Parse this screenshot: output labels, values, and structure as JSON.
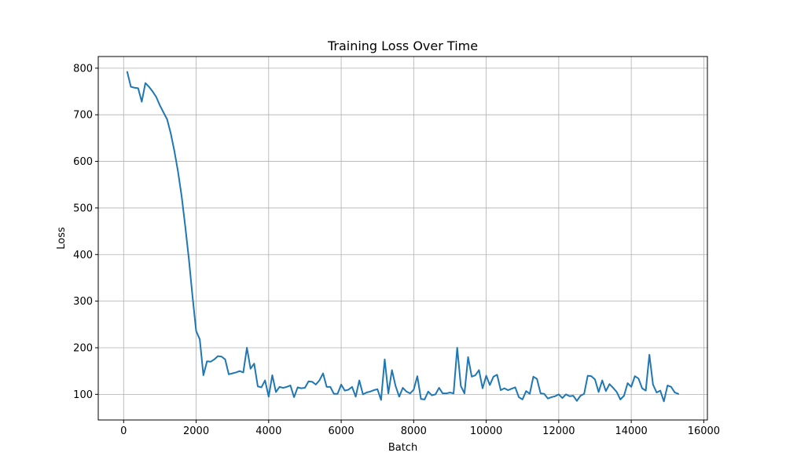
{
  "chart_data": {
    "type": "line",
    "title": "Training Loss Over Time",
    "xlabel": "Batch",
    "ylabel": "Loss",
    "xlim": [
      -700,
      16100
    ],
    "ylim": [
      45,
      825
    ],
    "xticks": [
      0,
      2000,
      4000,
      6000,
      8000,
      10000,
      12000,
      14000,
      16000
    ],
    "xtick_labels": [
      "0",
      "2000",
      "4000",
      "6000",
      "8000",
      "10000",
      "12000",
      "14000",
      "16000"
    ],
    "yticks": [
      100,
      200,
      300,
      400,
      500,
      600,
      700,
      800
    ],
    "ytick_labels": [
      "100",
      "200",
      "300",
      "400",
      "500",
      "600",
      "700",
      "800"
    ],
    "grid": true,
    "legend": "none",
    "series": [
      {
        "color": "#1f77b4",
        "x": [
          100,
          200,
          300,
          400,
          500,
          600,
          700,
          800,
          900,
          1000,
          1100,
          1200,
          1300,
          1400,
          1500,
          1600,
          1700,
          1800,
          1900,
          2000,
          2100,
          2200,
          2300,
          2400,
          2500,
          2600,
          2700,
          2800,
          2900,
          3000,
          3100,
          3200,
          3300,
          3400,
          3500,
          3600,
          3700,
          3800,
          3900,
          4000,
          4100,
          4200,
          4300,
          4400,
          4500,
          4600,
          4700,
          4800,
          4900,
          5000,
          5100,
          5200,
          5300,
          5400,
          5500,
          5600,
          5700,
          5800,
          5900,
          6000,
          6100,
          6200,
          6300,
          6400,
          6500,
          6600,
          6700,
          6800,
          6900,
          7000,
          7100,
          7200,
          7300,
          7400,
          7500,
          7600,
          7700,
          7800,
          7900,
          8000,
          8100,
          8200,
          8300,
          8400,
          8500,
          8600,
          8700,
          8800,
          8900,
          9000,
          9100,
          9200,
          9300,
          9400,
          9500,
          9600,
          9700,
          9800,
          9900,
          10000,
          10100,
          10200,
          10300,
          10400,
          10500,
          10600,
          10700,
          10800,
          10900,
          11000,
          11100,
          11200,
          11300,
          11400,
          11500,
          11600,
          11700,
          11800,
          11900,
          12000,
          12100,
          12200,
          12300,
          12400,
          12500,
          12600,
          12700,
          12800,
          12900,
          13000,
          13100,
          13200,
          13300,
          13400,
          13500,
          13600,
          13700,
          13800,
          13900,
          14000,
          14100,
          14200,
          14300,
          14400,
          14500,
          14600,
          14700,
          14800,
          14900,
          15000,
          15100,
          15200,
          15300
        ],
        "y": [
          792,
          760,
          758,
          757,
          728,
          768,
          760,
          750,
          738,
          720,
          705,
          690,
          660,
          622,
          578,
          525,
          460,
          390,
          310,
          236,
          218,
          141,
          171,
          170,
          175,
          182,
          181,
          175,
          143,
          145,
          147,
          150,
          147,
          200,
          155,
          166,
          117,
          115,
          130,
          95,
          141,
          105,
          116,
          114,
          116,
          119,
          94,
          115,
          113,
          114,
          128,
          127,
          121,
          130,
          145,
          116,
          116,
          101,
          101,
          121,
          108,
          110,
          116,
          95,
          130,
          100,
          104,
          106,
          109,
          111,
          88,
          175,
          102,
          152,
          118,
          95,
          114,
          106,
          102,
          110,
          139,
          90,
          89,
          106,
          98,
          100,
          114,
          102,
          102,
          104,
          102,
          200,
          118,
          102,
          180,
          138,
          141,
          152,
          113,
          140,
          120,
          138,
          142,
          109,
          113,
          109,
          112,
          115,
          94,
          89,
          107,
          101,
          138,
          133,
          102,
          101,
          91,
          94,
          96,
          100,
          92,
          100,
          96,
          97,
          86,
          97,
          101,
          140,
          139,
          132,
          105,
          130,
          107,
          122,
          114,
          105,
          89,
          97,
          124,
          116,
          139,
          134,
          113,
          108,
          185,
          121,
          104,
          108,
          85,
          119,
          116,
          104,
          101
        ]
      }
    ]
  }
}
